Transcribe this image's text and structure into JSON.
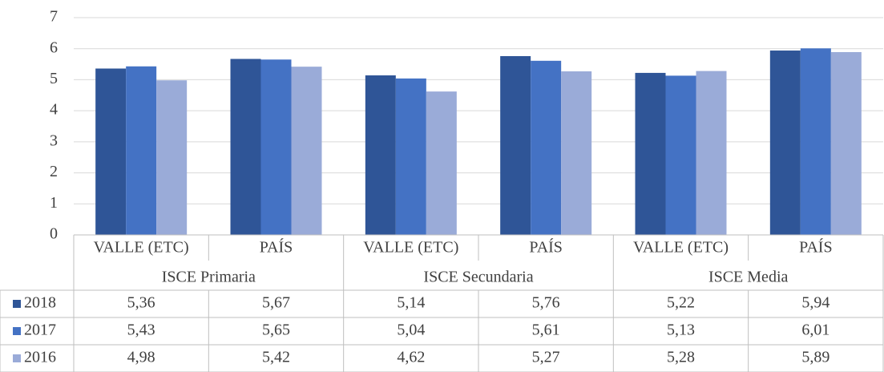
{
  "chart_data": {
    "type": "bar",
    "categories": [
      "VALLE (ETC)",
      "PAÍS",
      "VALLE (ETC)",
      "PAÍS",
      "VALLE (ETC)",
      "PAÍS"
    ],
    "category_groups": [
      "ISCE Primaria",
      "ISCE Secundaria",
      "ISCE Media"
    ],
    "series": [
      {
        "name": "2018",
        "color": "#2f5597",
        "values": [
          5.36,
          5.67,
          5.14,
          5.76,
          5.22,
          5.94
        ],
        "value_labels": [
          "5,36",
          "5,67",
          "5,14",
          "5,76",
          "5,22",
          "5,94"
        ]
      },
      {
        "name": "2017",
        "color": "#4472c4",
        "values": [
          5.43,
          5.65,
          5.04,
          5.61,
          5.13,
          6.01
        ],
        "value_labels": [
          "5,43",
          "5,65",
          "5,04",
          "5,61",
          "5,13",
          "6,01"
        ]
      },
      {
        "name": "2016",
        "color": "#9aabd8",
        "values": [
          4.98,
          5.42,
          4.62,
          5.27,
          5.28,
          5.89
        ],
        "value_labels": [
          "4,98",
          "5,42",
          "4,62",
          "5,27",
          "5,28",
          "5,89"
        ]
      }
    ],
    "ylim": [
      0,
      7
    ],
    "yticks": [
      0,
      1,
      2,
      3,
      4,
      5,
      6,
      7
    ],
    "grid": true
  }
}
